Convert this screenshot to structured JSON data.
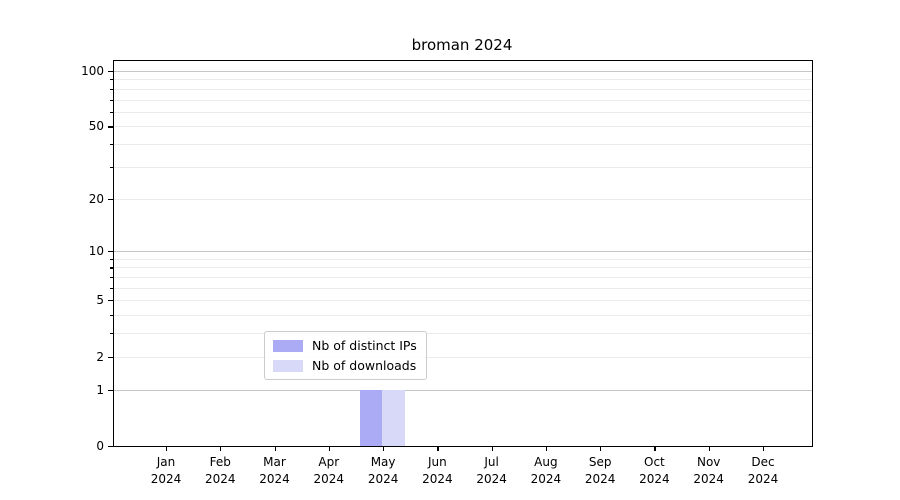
{
  "title": "broman 2024",
  "chart_data": {
    "type": "bar",
    "title": "broman 2024",
    "x_categories": [
      {
        "month": "Jan",
        "year": "2024"
      },
      {
        "month": "Feb",
        "year": "2024"
      },
      {
        "month": "Mar",
        "year": "2024"
      },
      {
        "month": "Apr",
        "year": "2024"
      },
      {
        "month": "May",
        "year": "2024"
      },
      {
        "month": "Jun",
        "year": "2024"
      },
      {
        "month": "Jul",
        "year": "2024"
      },
      {
        "month": "Aug",
        "year": "2024"
      },
      {
        "month": "Sep",
        "year": "2024"
      },
      {
        "month": "Oct",
        "year": "2024"
      },
      {
        "month": "Nov",
        "year": "2024"
      },
      {
        "month": "Dec",
        "year": "2024"
      }
    ],
    "series": [
      {
        "name": "Nb of distinct IPs",
        "color": "#aaaaf5",
        "values": [
          0,
          0,
          0,
          0,
          1,
          0,
          0,
          0,
          0,
          0,
          0,
          0
        ]
      },
      {
        "name": "Nb of downloads",
        "color": "#d8d8f8",
        "values": [
          0,
          0,
          0,
          0,
          1,
          0,
          0,
          0,
          0,
          0,
          0,
          0
        ]
      }
    ],
    "y_axis": {
      "scale": "log1p",
      "labeled_ticks": [
        0,
        1,
        2,
        5,
        10,
        20,
        50,
        100
      ],
      "major_gridlines": [
        1,
        10,
        100
      ],
      "minor_gridlines": [
        2,
        3,
        4,
        5,
        6,
        7,
        8,
        9,
        20,
        30,
        40,
        50,
        60,
        70,
        80,
        90
      ],
      "top_value": 113
    },
    "grid": true,
    "legend_position": "inside-bottom-center"
  },
  "colors": {
    "major_grid": "#c6c6c6",
    "minor_grid": "#ebebeb",
    "axis": "#000000",
    "legend_border": "#cccccc"
  }
}
